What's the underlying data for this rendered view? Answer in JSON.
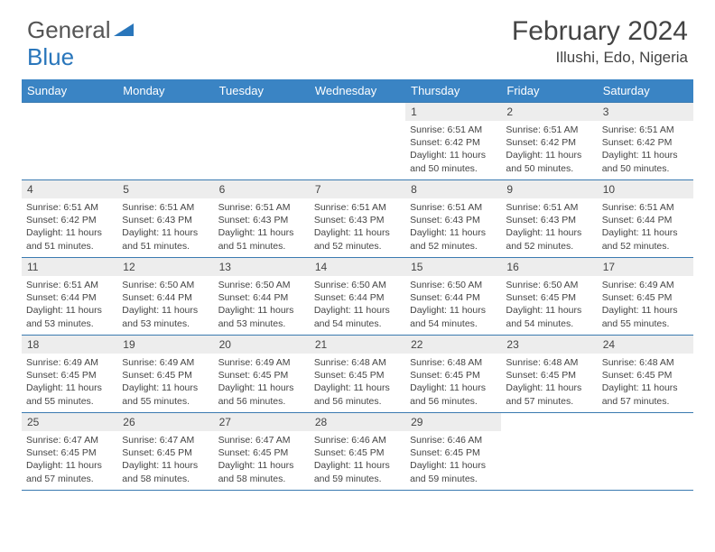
{
  "brand": {
    "g": "General",
    "b": "Blue"
  },
  "title": "February 2024",
  "location": "Illushi, Edo, Nigeria",
  "colors": {
    "header_bg": "#3a84c4",
    "header_text": "#ffffff",
    "border": "#3a7ab0",
    "daynum_bg": "#ededed",
    "text": "#444444",
    "logo_gray": "#555555",
    "logo_blue": "#2976bb"
  },
  "day_headers": [
    "Sunday",
    "Monday",
    "Tuesday",
    "Wednesday",
    "Thursday",
    "Friday",
    "Saturday"
  ],
  "weeks": [
    [
      null,
      null,
      null,
      null,
      {
        "n": "1",
        "rise": "6:51 AM",
        "set": "6:42 PM",
        "dl": "11 hours and 50 minutes."
      },
      {
        "n": "2",
        "rise": "6:51 AM",
        "set": "6:42 PM",
        "dl": "11 hours and 50 minutes."
      },
      {
        "n": "3",
        "rise": "6:51 AM",
        "set": "6:42 PM",
        "dl": "11 hours and 50 minutes."
      }
    ],
    [
      {
        "n": "4",
        "rise": "6:51 AM",
        "set": "6:42 PM",
        "dl": "11 hours and 51 minutes."
      },
      {
        "n": "5",
        "rise": "6:51 AM",
        "set": "6:43 PM",
        "dl": "11 hours and 51 minutes."
      },
      {
        "n": "6",
        "rise": "6:51 AM",
        "set": "6:43 PM",
        "dl": "11 hours and 51 minutes."
      },
      {
        "n": "7",
        "rise": "6:51 AM",
        "set": "6:43 PM",
        "dl": "11 hours and 52 minutes."
      },
      {
        "n": "8",
        "rise": "6:51 AM",
        "set": "6:43 PM",
        "dl": "11 hours and 52 minutes."
      },
      {
        "n": "9",
        "rise": "6:51 AM",
        "set": "6:43 PM",
        "dl": "11 hours and 52 minutes."
      },
      {
        "n": "10",
        "rise": "6:51 AM",
        "set": "6:44 PM",
        "dl": "11 hours and 52 minutes."
      }
    ],
    [
      {
        "n": "11",
        "rise": "6:51 AM",
        "set": "6:44 PM",
        "dl": "11 hours and 53 minutes."
      },
      {
        "n": "12",
        "rise": "6:50 AM",
        "set": "6:44 PM",
        "dl": "11 hours and 53 minutes."
      },
      {
        "n": "13",
        "rise": "6:50 AM",
        "set": "6:44 PM",
        "dl": "11 hours and 53 minutes."
      },
      {
        "n": "14",
        "rise": "6:50 AM",
        "set": "6:44 PM",
        "dl": "11 hours and 54 minutes."
      },
      {
        "n": "15",
        "rise": "6:50 AM",
        "set": "6:44 PM",
        "dl": "11 hours and 54 minutes."
      },
      {
        "n": "16",
        "rise": "6:50 AM",
        "set": "6:45 PM",
        "dl": "11 hours and 54 minutes."
      },
      {
        "n": "17",
        "rise": "6:49 AM",
        "set": "6:45 PM",
        "dl": "11 hours and 55 minutes."
      }
    ],
    [
      {
        "n": "18",
        "rise": "6:49 AM",
        "set": "6:45 PM",
        "dl": "11 hours and 55 minutes."
      },
      {
        "n": "19",
        "rise": "6:49 AM",
        "set": "6:45 PM",
        "dl": "11 hours and 55 minutes."
      },
      {
        "n": "20",
        "rise": "6:49 AM",
        "set": "6:45 PM",
        "dl": "11 hours and 56 minutes."
      },
      {
        "n": "21",
        "rise": "6:48 AM",
        "set": "6:45 PM",
        "dl": "11 hours and 56 minutes."
      },
      {
        "n": "22",
        "rise": "6:48 AM",
        "set": "6:45 PM",
        "dl": "11 hours and 56 minutes."
      },
      {
        "n": "23",
        "rise": "6:48 AM",
        "set": "6:45 PM",
        "dl": "11 hours and 57 minutes."
      },
      {
        "n": "24",
        "rise": "6:48 AM",
        "set": "6:45 PM",
        "dl": "11 hours and 57 minutes."
      }
    ],
    [
      {
        "n": "25",
        "rise": "6:47 AM",
        "set": "6:45 PM",
        "dl": "11 hours and 57 minutes."
      },
      {
        "n": "26",
        "rise": "6:47 AM",
        "set": "6:45 PM",
        "dl": "11 hours and 58 minutes."
      },
      {
        "n": "27",
        "rise": "6:47 AM",
        "set": "6:45 PM",
        "dl": "11 hours and 58 minutes."
      },
      {
        "n": "28",
        "rise": "6:46 AM",
        "set": "6:45 PM",
        "dl": "11 hours and 59 minutes."
      },
      {
        "n": "29",
        "rise": "6:46 AM",
        "set": "6:45 PM",
        "dl": "11 hours and 59 minutes."
      },
      null,
      null
    ]
  ],
  "labels": {
    "sunrise": "Sunrise:",
    "sunset": "Sunset:",
    "daylight": "Daylight:"
  }
}
